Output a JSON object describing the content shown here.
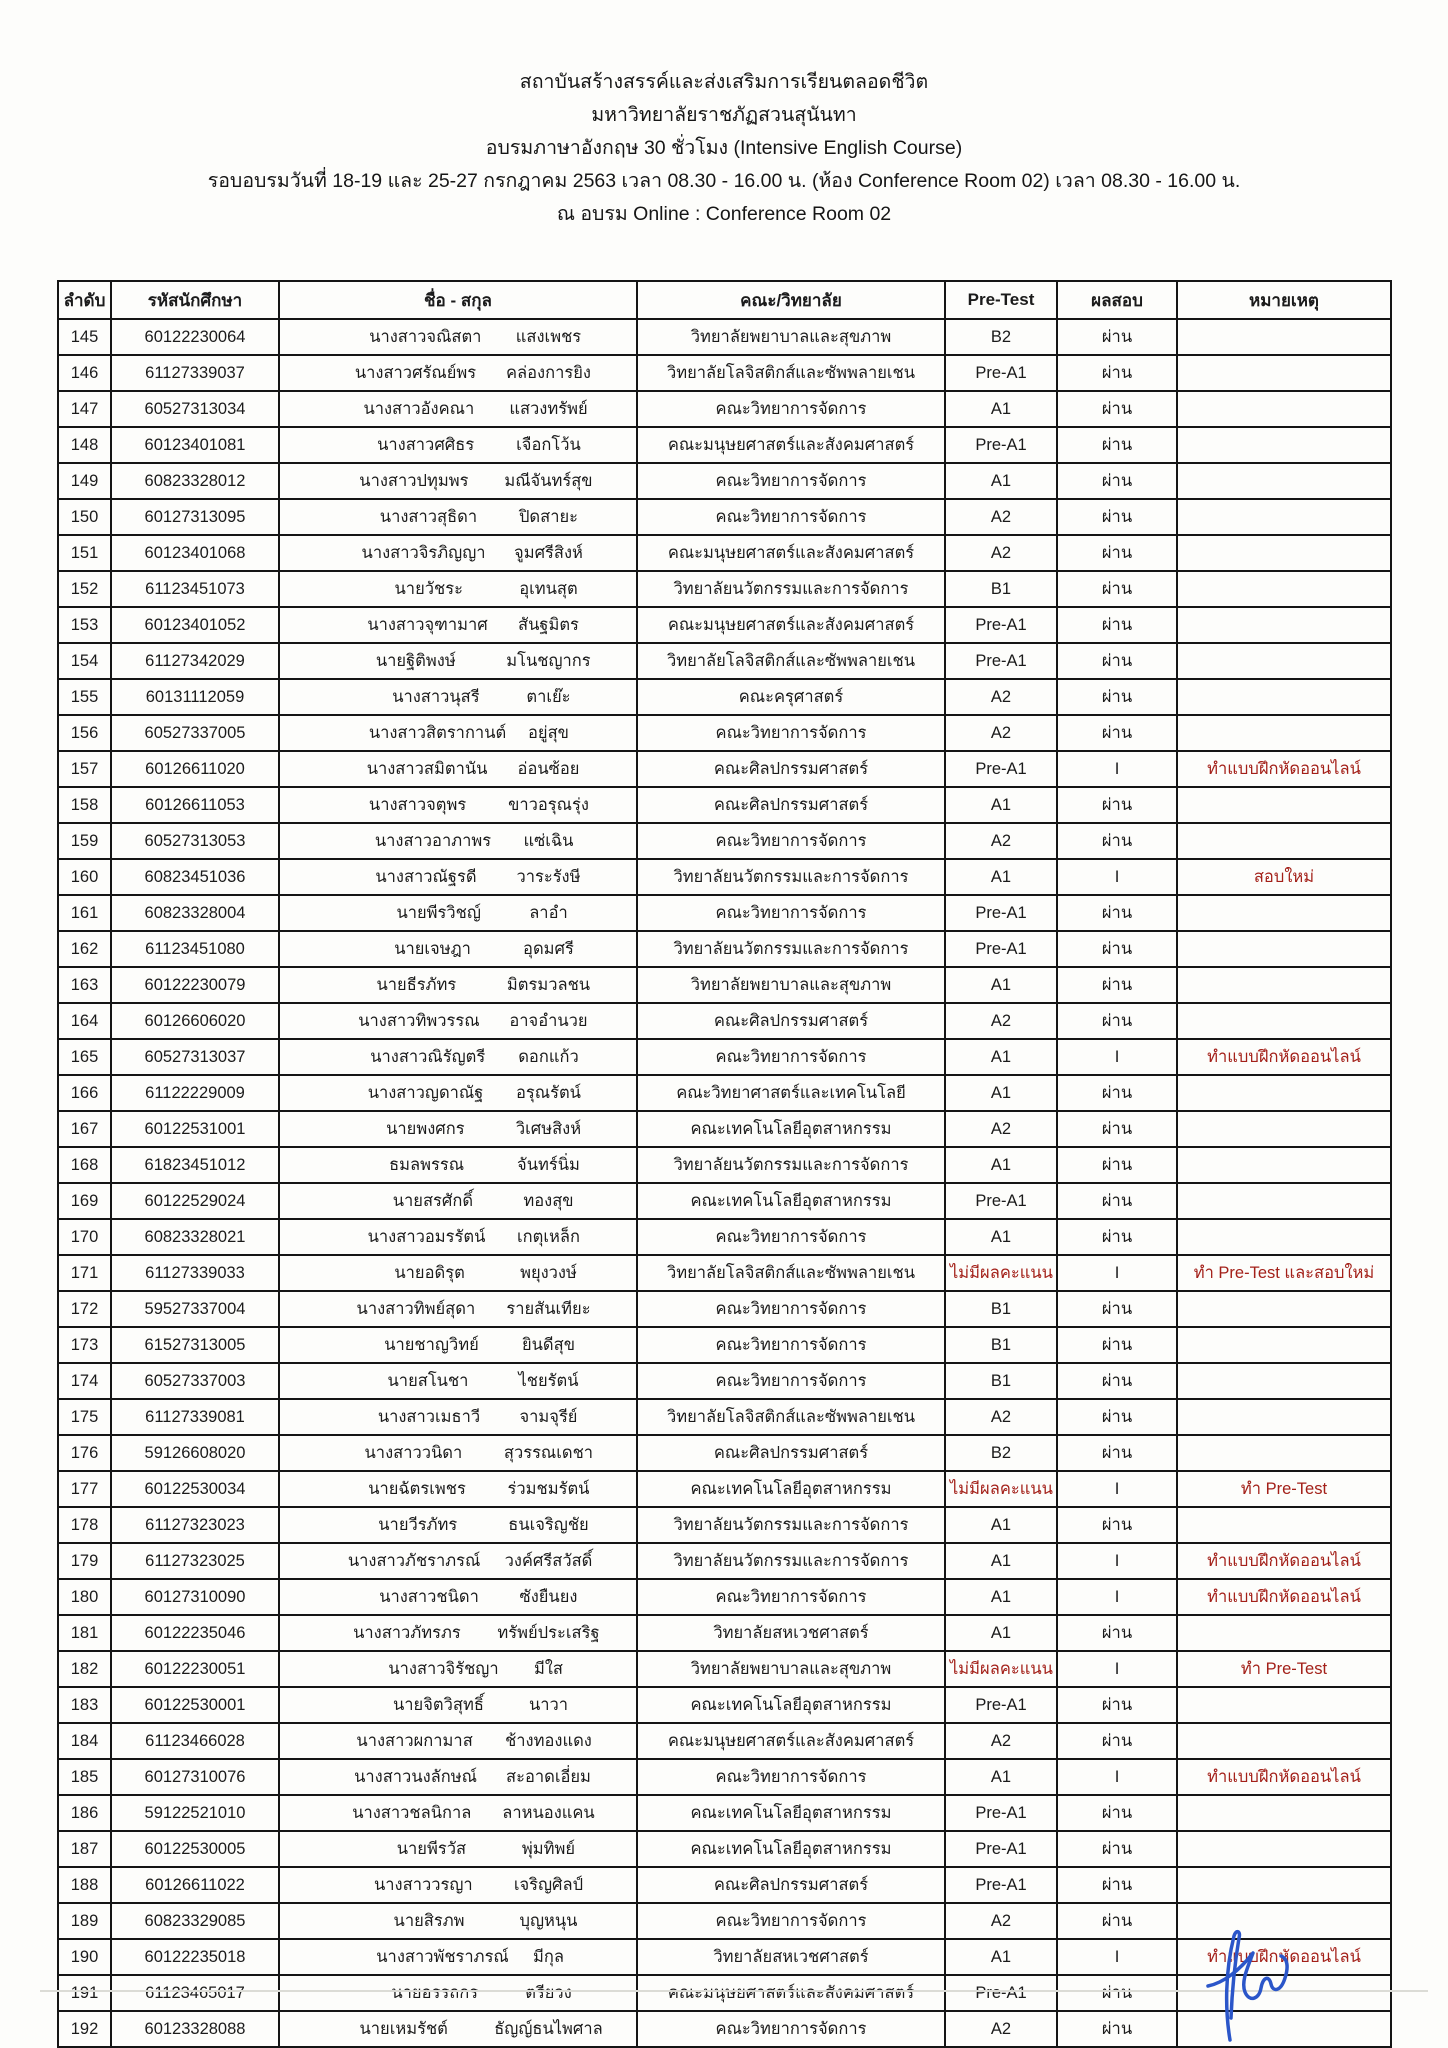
{
  "document": {
    "title_lines": [
      "สถาบันสร้างสรรค์และส่งเสริมการเรียนตลอดชีวิต",
      "มหาวิทยาลัยราชภัฏสวนสุนันทา",
      "อบรมภาษาอังกฤษ 30 ชั่วโมง (Intensive English Course)",
      "รอบอบรมวันที่ 18-19 และ 25-27 กรกฎาคม 2563 เวลา 08.30 - 16.00 น. (ห้อง Conference Room 02) เวลา 08.30 - 16.00 น.",
      "ณ อบรม Online : Conference Room 02"
    ]
  },
  "table": {
    "columns": [
      "ลำดับ",
      "รหัสนักศึกษา",
      "ชื่อ - สกุล",
      "คณะ/วิทยาลัย",
      "Pre-Test",
      "ผลสอบ",
      "หมายเหตุ"
    ],
    "row_fields": [
      "no",
      "student_id",
      "first_name",
      "last_name",
      "faculty",
      "pre_test",
      "result",
      "remark"
    ],
    "no_score_label": "ไม่มีผลคะแนน",
    "rows": [
      [
        "145",
        "60122230064",
        "นางสาวจณิสตา",
        "แสงเพชร",
        "วิทยาลัยพยาบาลและสุขภาพ",
        "B2",
        "ผ่าน",
        ""
      ],
      [
        "146",
        "61127339037",
        "นางสาวศรัณย์พร",
        "คล่องการยิง",
        "วิทยาลัยโลจิสติกส์และซัพพลายเชน",
        "Pre-A1",
        "ผ่าน",
        ""
      ],
      [
        "147",
        "60527313034",
        "นางสาวอังคณา",
        "แสวงทรัพย์",
        "คณะวิทยาการจัดการ",
        "A1",
        "ผ่าน",
        ""
      ],
      [
        "148",
        "60123401081",
        "นางสาวศศิธร",
        "เจือกโว้น",
        "คณะมนุษยศาสตร์และสังคมศาสตร์",
        "Pre-A1",
        "ผ่าน",
        ""
      ],
      [
        "149",
        "60823328012",
        "นางสาวปทุมพร",
        "มณีจันทร์สุข",
        "คณะวิทยาการจัดการ",
        "A1",
        "ผ่าน",
        ""
      ],
      [
        "150",
        "60127313095",
        "นางสาวสุธิดา",
        "ปิดสายะ",
        "คณะวิทยาการจัดการ",
        "A2",
        "ผ่าน",
        ""
      ],
      [
        "151",
        "60123401068",
        "นางสาวจิรภิญญา",
        "จูมศรีสิงห์",
        "คณะมนุษยศาสตร์และสังคมศาสตร์",
        "A2",
        "ผ่าน",
        ""
      ],
      [
        "152",
        "61123451073",
        "นายวัชระ",
        "อุเทนสุต",
        "วิทยาลัยนวัตกรรมและการจัดการ",
        "B1",
        "ผ่าน",
        ""
      ],
      [
        "153",
        "60123401052",
        "นางสาวจุฑามาศ",
        "สันฐมิตร",
        "คณะมนุษยศาสตร์และสังคมศาสตร์",
        "Pre-A1",
        "ผ่าน",
        ""
      ],
      [
        "154",
        "61127342029",
        "นายฐิติพงษ์",
        "มโนชญากร",
        "วิทยาลัยโลจิสติกส์และซัพพลายเชน",
        "Pre-A1",
        "ผ่าน",
        ""
      ],
      [
        "155",
        "60131112059",
        "นางสาวนุสรี",
        "ตาเย๊ะ",
        "คณะครุศาสตร์",
        "A2",
        "ผ่าน",
        ""
      ],
      [
        "156",
        "60527337005",
        "นางสาวสิตรากานต์",
        "อยู่สุข",
        "คณะวิทยาการจัดการ",
        "A2",
        "ผ่าน",
        ""
      ],
      [
        "157",
        "60126611020",
        "นางสาวสมิตานัน",
        "อ่อนซ้อย",
        "คณะศิลปกรรมศาสตร์",
        "Pre-A1",
        "I",
        "ทำแบบฝึกหัดออนไลน์"
      ],
      [
        "158",
        "60126611053",
        "นางสาวจตุพร",
        "ขาวอรุณรุ่ง",
        "คณะศิลปกรรมศาสตร์",
        "A1",
        "ผ่าน",
        ""
      ],
      [
        "159",
        "60527313053",
        "นางสาวอาภาพร",
        "แซ่เฉิน",
        "คณะวิทยาการจัดการ",
        "A2",
        "ผ่าน",
        ""
      ],
      [
        "160",
        "60823451036",
        "นางสาวณัฐรดี",
        "วาระรังษี",
        "วิทยาลัยนวัตกรรมและการจัดการ",
        "A1",
        "I",
        "สอบใหม่"
      ],
      [
        "161",
        "60823328004",
        "นายพีรวิชญ์",
        "ลาอำ",
        "คณะวิทยาการจัดการ",
        "Pre-A1",
        "ผ่าน",
        ""
      ],
      [
        "162",
        "61123451080",
        "นายเจษฎา",
        "อุดมศรี",
        "วิทยาลัยนวัตกรรมและการจัดการ",
        "Pre-A1",
        "ผ่าน",
        ""
      ],
      [
        "163",
        "60122230079",
        "นายธีรภัทร",
        "มิตรมวลชน",
        "วิทยาลัยพยาบาลและสุขภาพ",
        "A1",
        "ผ่าน",
        ""
      ],
      [
        "164",
        "60126606020",
        "นางสาวทิพวรรณ",
        "อาจอำนวย",
        "คณะศิลปกรรมศาสตร์",
        "A2",
        "ผ่าน",
        ""
      ],
      [
        "165",
        "60527313037",
        "นางสาวณิรัญตรี",
        "ดอกแก้ว",
        "คณะวิทยาการจัดการ",
        "A1",
        "I",
        "ทำแบบฝึกหัดออนไลน์"
      ],
      [
        "166",
        "61122229009",
        "นางสาวญดาณัฐ",
        "อรุณรัตน์",
        "คณะวิทยาศาสตร์และเทคโนโลยี",
        "A1",
        "ผ่าน",
        ""
      ],
      [
        "167",
        "60122531001",
        "นายพงศกร",
        "วิเศษสิงห์",
        "คณะเทคโนโลยีอุตสาหกรรม",
        "A2",
        "ผ่าน",
        ""
      ],
      [
        "168",
        "61823451012",
        "ธมลพรรณ",
        "จันทร์นิ่ม",
        "วิทยาลัยนวัตกรรมและการจัดการ",
        "A1",
        "ผ่าน",
        ""
      ],
      [
        "169",
        "60122529024",
        "นายสรศักดิ์",
        "ทองสุข",
        "คณะเทคโนโลยีอุตสาหกรรม",
        "Pre-A1",
        "ผ่าน",
        ""
      ],
      [
        "170",
        "60823328021",
        "นางสาวอมรรัตน์",
        "เกตุเหล็ก",
        "คณะวิทยาการจัดการ",
        "A1",
        "ผ่าน",
        ""
      ],
      [
        "171",
        "61127339033",
        "นายอดิรุต",
        "พยุงวงษ์",
        "วิทยาลัยโลจิสติกส์และซัพพลายเชน",
        "ไม่มีผลคะแนน",
        "I",
        "ทำ Pre-Test และสอบใหม่"
      ],
      [
        "172",
        "59527337004",
        "นางสาวทิพย์สุดา",
        "รายสันเทียะ",
        "คณะวิทยาการจัดการ",
        "B1",
        "ผ่าน",
        ""
      ],
      [
        "173",
        "61527313005",
        "นายชาญวิทย์",
        "ยินดีสุข",
        "คณะวิทยาการจัดการ",
        "B1",
        "ผ่าน",
        ""
      ],
      [
        "174",
        "60527337003",
        "นายสโนชา",
        "ไชยรัตน์",
        "คณะวิทยาการจัดการ",
        "B1",
        "ผ่าน",
        ""
      ],
      [
        "175",
        "61127339081",
        "นางสาวเมธาวี",
        "จามจุรีย์",
        "วิทยาลัยโลจิสติกส์และซัพพลายเชน",
        "A2",
        "ผ่าน",
        ""
      ],
      [
        "176",
        "59126608020",
        "นางสาววนิดา",
        "สุวรรณเดชา",
        "คณะศิลปกรรมศาสตร์",
        "B2",
        "ผ่าน",
        ""
      ],
      [
        "177",
        "60122530034",
        "นายฉัตรเพชร",
        "ร่วมชมรัตน์",
        "คณะเทคโนโลยีอุตสาหกรรม",
        "ไม่มีผลคะแนน",
        "I",
        "ทำ Pre-Test"
      ],
      [
        "178",
        "61127323023",
        "นายวีรภัทร",
        "ธนเจริญชัย",
        "วิทยาลัยนวัตกรรมและการจัดการ",
        "A1",
        "ผ่าน",
        ""
      ],
      [
        "179",
        "61127323025",
        "นางสาวภัชราภรณ์",
        "วงค์ศรีสวัสดิ์",
        "วิทยาลัยนวัตกรรมและการจัดการ",
        "A1",
        "I",
        "ทำแบบฝึกหัดออนไลน์"
      ],
      [
        "180",
        "60127310090",
        "นางสาวชนิดา",
        "ซังยืนยง",
        "คณะวิทยาการจัดการ",
        "A1",
        "I",
        "ทำแบบฝึกหัดออนไลน์"
      ],
      [
        "181",
        "60122235046",
        "นางสาวภัทรภร",
        "ทรัพย์ประเสริฐ",
        "วิทยาลัยสหเวชศาสตร์",
        "A1",
        "ผ่าน",
        ""
      ],
      [
        "182",
        "60122230051",
        "นางสาวจิรัชญา",
        "มีใส",
        "วิทยาลัยพยาบาลและสุขภาพ",
        "ไม่มีผลคะแนน",
        "I",
        "ทำ Pre-Test"
      ],
      [
        "183",
        "60122530001",
        "นายจิตวิสุทธิ์",
        "นาวา",
        "คณะเทคโนโลยีอุตสาหกรรม",
        "Pre-A1",
        "ผ่าน",
        ""
      ],
      [
        "184",
        "61123466028",
        "นางสาวผกามาส",
        "ช้างทองแดง",
        "คณะมนุษยศาสตร์และสังคมศาสตร์",
        "A2",
        "ผ่าน",
        ""
      ],
      [
        "185",
        "60127310076",
        "นางสาวนงลักษณ์",
        "สะอาดเอี่ยม",
        "คณะวิทยาการจัดการ",
        "A1",
        "I",
        "ทำแบบฝึกหัดออนไลน์"
      ],
      [
        "186",
        "59122521010",
        "นางสาวชลนิกาล",
        "ลาหนองแคน",
        "คณะเทคโนโลยีอุตสาหกรรม",
        "Pre-A1",
        "ผ่าน",
        ""
      ],
      [
        "187",
        "60122530005",
        "นายพีรวัส",
        "พุ่มทิพย์",
        "คณะเทคโนโลยีอุตสาหกรรม",
        "Pre-A1",
        "ผ่าน",
        ""
      ],
      [
        "188",
        "60126611022",
        "นางสาววรญา",
        "เจริญศิลป์",
        "คณะศิลปกรรมศาสตร์",
        "Pre-A1",
        "ผ่าน",
        ""
      ],
      [
        "189",
        "60823329085",
        "นายสิรภพ",
        "บุญหนุน",
        "คณะวิทยาการจัดการ",
        "A2",
        "ผ่าน",
        ""
      ],
      [
        "190",
        "60122235018",
        "นางสาวพัชราภรณ์",
        "มีกุล",
        "วิทยาลัยสหเวชศาสตร์",
        "A1",
        "I",
        "ทำแบบฝึกหัดออนไลน์"
      ],
      [
        "191",
        "61123465017",
        "นายอรรถกร",
        "ตรียวง",
        "คณะมนุษยศาสตร์และสังคมศาสตร์",
        "Pre-A1",
        "ผ่าน",
        ""
      ],
      [
        "192",
        "60123328088",
        "นายเหมรัชต์",
        "ธัญญ์ธนไพศาล",
        "คณะวิทยาการจัดการ",
        "A2",
        "ผ่าน",
        ""
      ]
    ]
  },
  "signature": {
    "description": "handwritten-blue-initials"
  },
  "colors": {
    "ink": "#1b1b1b",
    "remark_red": "#a32019",
    "no_score_red": "#a32019",
    "border": "#151515",
    "signature_blue": "#2b56c9"
  }
}
